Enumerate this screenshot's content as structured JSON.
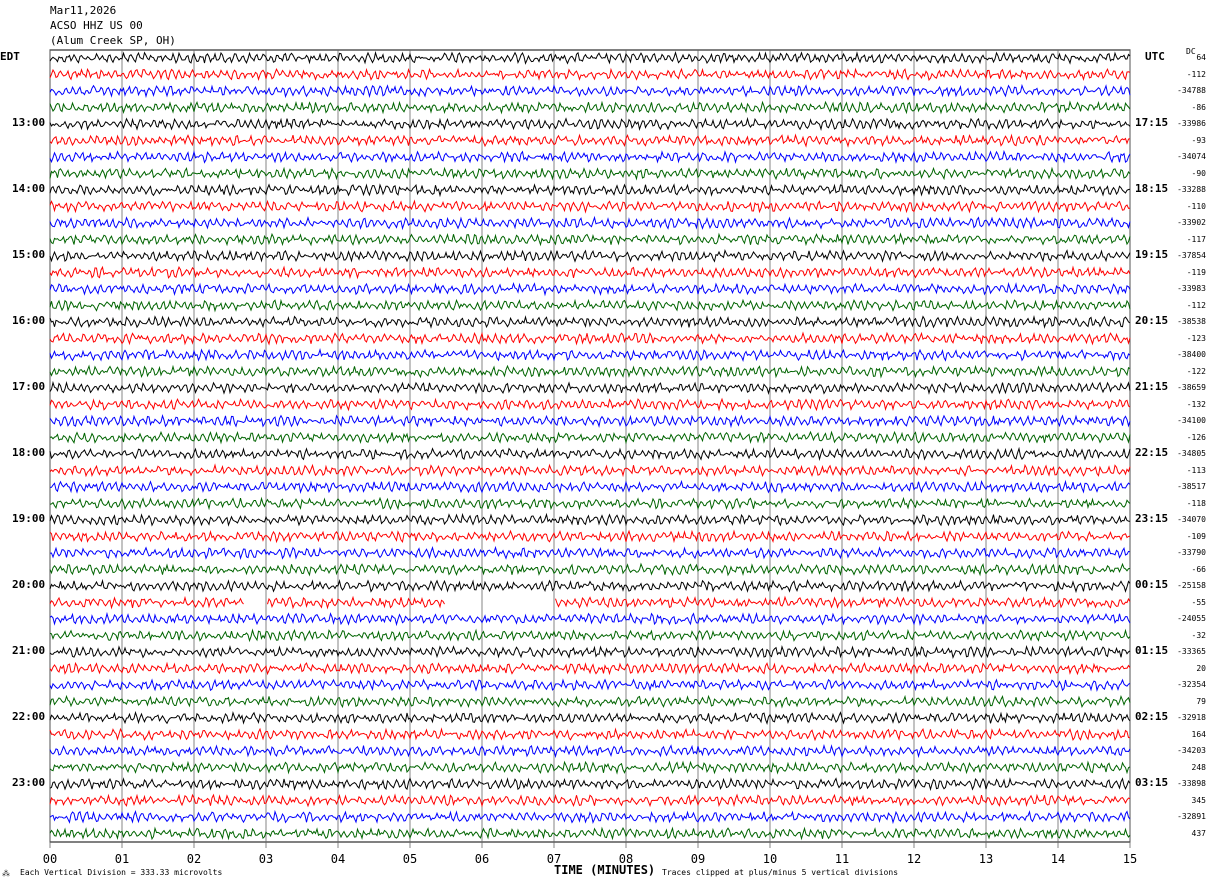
{
  "header": {
    "date": "Mar11,2026",
    "station": "ACSO HHZ US 00",
    "location": "(Alum Creek SP, OH)"
  },
  "left_tz": "EDT",
  "right_tz": "UTC",
  "dc_label": "DC",
  "footer": {
    "division": "Each Vertical Division =  333.33 microvolts",
    "xlabel": "TIME (MINUTES)",
    "clip": "Traces clipped at plus/minus 5 vertical divisions"
  },
  "colors": [
    "#000000",
    "#ff0000",
    "#0000ff",
    "#006400"
  ],
  "chart_data": {
    "type": "line",
    "title": "ACSO HHZ US 00 helicorder",
    "xlabel": "TIME (MINUTES)",
    "xlim": [
      0,
      15
    ],
    "x_ticks": [
      "00",
      "01",
      "02",
      "03",
      "04",
      "05",
      "06",
      "07",
      "08",
      "09",
      "10",
      "11",
      "12",
      "13",
      "14",
      "15"
    ],
    "left_labels": [
      "13:00",
      "14:00",
      "15:00",
      "16:00",
      "17:00",
      "18:00",
      "19:00",
      "20:00",
      "21:00",
      "22:00",
      "23:00"
    ],
    "right_labels": [
      "17:15",
      "18:15",
      "19:15",
      "20:15",
      "21:15",
      "22:15",
      "23:15",
      "00:15",
      "01:15",
      "02:15",
      "03:15"
    ],
    "dc_offsets": [
      "64",
      "-112",
      "-34788",
      "-86",
      "-33986",
      "-93",
      "-34074",
      "-90",
      "-33288",
      "-110",
      "-33902",
      "-117",
      "-37854",
      "-119",
      "-33983",
      "-112",
      "-38538",
      "-123",
      "-38400",
      "-122",
      "-38659",
      "-132",
      "-34100",
      "-126",
      "-34805",
      "-113",
      "-38517",
      "-118",
      "-34070",
      "-109",
      "-33790",
      "-66",
      "-25158",
      "-55",
      "-24055",
      "-32",
      "-33365",
      "20",
      "-32354",
      "79",
      "-32918",
      "164",
      "-34203",
      "248",
      "-33898",
      "345",
      "-32891",
      "437"
    ],
    "trace_count": 48,
    "gaps": [
      {
        "trace": 33,
        "from": 2.7,
        "to": 3.0
      },
      {
        "trace": 33,
        "from": 5.5,
        "to": 7.0
      }
    ]
  }
}
